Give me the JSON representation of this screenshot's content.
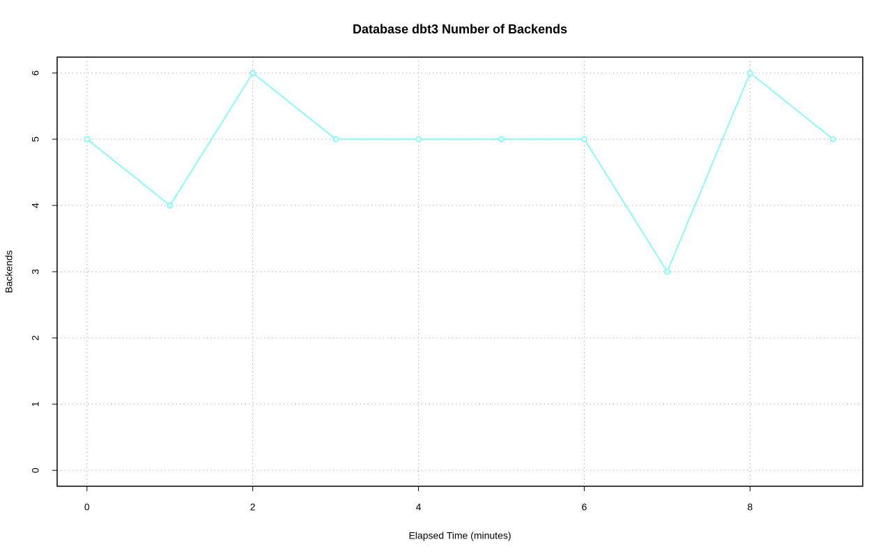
{
  "chart_data": {
    "type": "line",
    "title": "Database dbt3 Number of Backends",
    "xlabel": "Elapsed Time (minutes)",
    "ylabel": "Backends",
    "x": [
      0,
      1,
      2,
      3,
      4,
      5,
      6,
      7,
      8,
      9
    ],
    "series": [
      {
        "name": "Backends",
        "color": "#66ffff",
        "values": [
          5,
          4,
          6,
          5,
          5,
          5,
          5,
          3,
          6,
          5
        ]
      }
    ],
    "xlim": [
      -0.36,
      9.36
    ],
    "xticks": [
      0,
      2,
      4,
      6,
      8
    ],
    "ylim": [
      -0.24,
      6.24
    ],
    "yticks": [
      0,
      1,
      2,
      3,
      4,
      5,
      6
    ],
    "grid": true,
    "markers": "open-circle"
  }
}
